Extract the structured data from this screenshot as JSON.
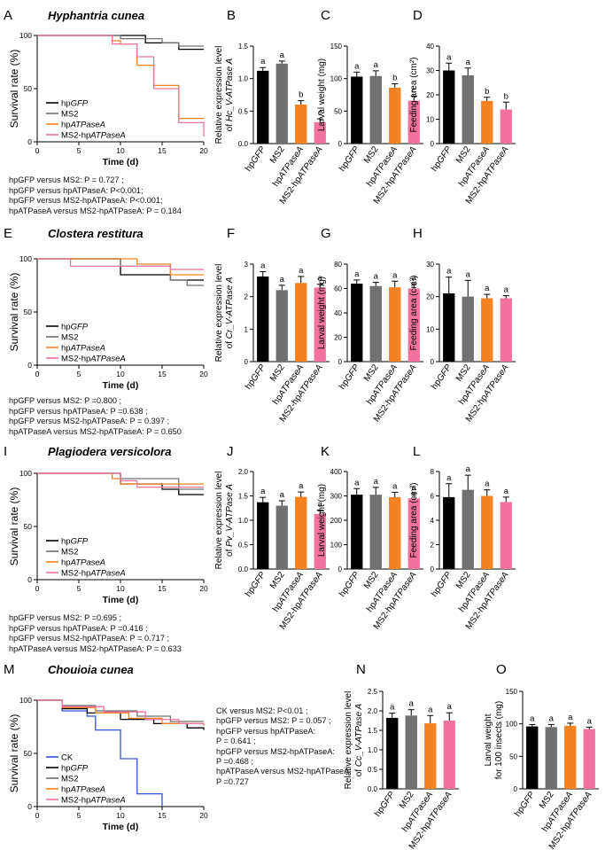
{
  "colors": {
    "hpGFP": "#000000",
    "MS2": "#707070",
    "hpATPaseA": "#f58220",
    "MS2-hpATPaseA": "#f0739f",
    "CK": "#3355d8"
  },
  "groups": [
    "hpGFP",
    "MS2",
    "hpATPaseA",
    "MS2-hpATPaseA"
  ],
  "rows": [
    {
      "species": "Hyphantria cunea",
      "survival": {
        "letter": "A",
        "ylabel": "Survival rate (%)",
        "xlabel": "Time (d)",
        "xticks": [
          "0",
          "5",
          "10",
          "15",
          "20"
        ],
        "yticks": [
          "0",
          "50",
          "100"
        ],
        "legend": [
          "hpGFP",
          "MS2",
          "hpATPaseA",
          "MS2-hpATPaseA"
        ],
        "series": [
          {
            "name": "hpGFP",
            "points": [
              [
                0,
                100
              ],
              [
                13,
                93
              ],
              [
                17,
                87
              ],
              [
                20,
                87
              ]
            ]
          },
          {
            "name": "MS2",
            "points": [
              [
                0,
                100
              ],
              [
                10,
                97
              ],
              [
                15,
                93
              ],
              [
                17,
                90
              ],
              [
                20,
                90
              ]
            ]
          },
          {
            "name": "hpATPaseA",
            "points": [
              [
                0,
                100
              ],
              [
                9,
                95
              ],
              [
                10,
                92
              ],
              [
                12,
                72
              ],
              [
                14,
                53
              ],
              [
                17,
                22
              ],
              [
                20,
                22
              ]
            ]
          },
          {
            "name": "MS2-hpATPaseA",
            "points": [
              [
                0,
                100
              ],
              [
                9,
                92
              ],
              [
                12,
                80
              ],
              [
                14,
                50
              ],
              [
                17,
                18
              ],
              [
                20,
                5
              ]
            ]
          }
        ]
      },
      "stats": [
        "hpGFP versus MS2: P = 0.727  ;",
        "hpGFP versus hpATPaseA: P<0.001;",
        "hpGFP versus MS2-hpATPaseA: P<0.001;",
        "hpATPaseA versus MS2-hpATPaseA: P = 0.184"
      ],
      "bars": [
        {
          "letter": "B",
          "ylabel": [
            "Relative expression level",
            "of Hc_V-ATPase A"
          ],
          "ymax": 1.5,
          "yticks": [
            "0.0",
            "0.5",
            "1.0",
            "1.5"
          ],
          "values": [
            1.12,
            1.23,
            0.6,
            0.33
          ],
          "errors": [
            0.05,
            0.04,
            0.06,
            0.05
          ],
          "sig": [
            "a",
            "a",
            "b",
            "c"
          ]
        },
        {
          "letter": "C",
          "ylabel": [
            "Larval weight (mg)"
          ],
          "ymax": 150,
          "yticks": [
            "0",
            "50",
            "100",
            "150"
          ],
          "values": [
            103,
            104,
            86,
            66
          ],
          "errors": [
            7,
            8,
            6,
            7
          ],
          "sig": [
            "a",
            "a",
            "b",
            "c"
          ]
        },
        {
          "letter": "D",
          "ylabel": [
            "Feeding area (cm²)"
          ],
          "ymax": 40,
          "yticks": [
            "0",
            "10",
            "20",
            "30",
            "40"
          ],
          "values": [
            30,
            28,
            17.5,
            14
          ],
          "errors": [
            3,
            3,
            1.5,
            3
          ],
          "sig": [
            "a",
            "a",
            "b",
            "b"
          ]
        }
      ]
    },
    {
      "species": "Clostera restitura",
      "survival": {
        "letter": "E",
        "ylabel": "Survival rate (%)",
        "xlabel": "Time (d)",
        "xticks": [
          "0",
          "5",
          "10",
          "15",
          "20"
        ],
        "yticks": [
          "0",
          "50",
          "100"
        ],
        "legend": [
          "hpGFP",
          "MS2",
          "hpATPaseA",
          "MS2-hpATPaseA"
        ],
        "series": [
          {
            "name": "hpGFP",
            "points": [
              [
                0,
                100
              ],
              [
                10,
                85
              ],
              [
                16,
                80
              ],
              [
                20,
                80
              ]
            ]
          },
          {
            "name": "MS2",
            "points": [
              [
                0,
                100
              ],
              [
                10,
                93
              ],
              [
                16,
                80
              ],
              [
                18,
                75
              ],
              [
                20,
                75
              ]
            ]
          },
          {
            "name": "hpATPaseA",
            "points": [
              [
                0,
                100
              ],
              [
                10,
                100
              ],
              [
                12,
                95
              ],
              [
                16,
                85
              ],
              [
                20,
                85
              ]
            ]
          },
          {
            "name": "MS2-hpATPaseA",
            "points": [
              [
                0,
                100
              ],
              [
                4,
                93
              ],
              [
                16,
                90
              ],
              [
                20,
                90
              ]
            ]
          }
        ]
      },
      "stats": [
        "hpGFP versus MS2: P =0.800  ;",
        "hpGFP versus hpATPaseA: P =0.638 ;",
        "hpGFP versus MS2-hpATPaseA: P = 0.397 ;",
        "hpATPaseA versus MS2-hpATPaseA: P = 0.650"
      ],
      "bars": [
        {
          "letter": "F",
          "ylabel": [
            "Relative expression level",
            "of Cr_V-ATPase A"
          ],
          "ymax": 3,
          "yticks": [
            "0",
            "1",
            "2",
            "3"
          ],
          "values": [
            2.62,
            2.2,
            2.42,
            2.28
          ],
          "errors": [
            0.15,
            0.15,
            0.2,
            0.1
          ],
          "sig": [
            "a",
            "a",
            "a",
            "a"
          ]
        },
        {
          "letter": "G",
          "ylabel": [
            "Larval weight (mg)"
          ],
          "ymax": 80,
          "yticks": [
            "0",
            "20",
            "40",
            "60",
            "80"
          ],
          "values": [
            64,
            62,
            61,
            60
          ],
          "errors": [
            3,
            3,
            5,
            4
          ],
          "sig": [
            "a",
            "a",
            "a",
            "a"
          ]
        },
        {
          "letter": "H",
          "ylabel": [
            "Feeding area (cm²)"
          ],
          "ymax": 30,
          "yticks": [
            "0",
            "10",
            "20",
            "30"
          ],
          "values": [
            21,
            20,
            19.5,
            19.5
          ],
          "errors": [
            5,
            5,
            1.2,
            0.8
          ],
          "sig": [
            "a",
            "a",
            "a",
            "a"
          ]
        }
      ]
    },
    {
      "species": "Plagiodera versicolora",
      "survival": {
        "letter": "I",
        "ylabel": "Survival rate (%)",
        "xlabel": "Time (d)",
        "xticks": [
          "0",
          "5",
          "10",
          "15",
          "20"
        ],
        "yticks": [
          "0",
          "50",
          "100"
        ],
        "legend": [
          "hpGFP",
          "MS2",
          "hpATPaseA",
          "MS2-hpATPaseA"
        ],
        "series": [
          {
            "name": "hpGFP",
            "points": [
              [
                0,
                100
              ],
              [
                10,
                90
              ],
              [
                15,
                85
              ],
              [
                17,
                80
              ],
              [
                20,
                80
              ]
            ]
          },
          {
            "name": "MS2",
            "points": [
              [
                0,
                100
              ],
              [
                10,
                95
              ],
              [
                17,
                85
              ],
              [
                20,
                85
              ]
            ]
          },
          {
            "name": "hpATPaseA",
            "points": [
              [
                0,
                100
              ],
              [
                9,
                95
              ],
              [
                10,
                90
              ],
              [
                20,
                90
              ]
            ]
          },
          {
            "name": "MS2-hpATPaseA",
            "points": [
              [
                0,
                100
              ],
              [
                10,
                93
              ],
              [
                12,
                87
              ],
              [
                20,
                87
              ]
            ]
          }
        ]
      },
      "stats": [
        "hpGFP versus MS2: P =0.695  ;",
        "hpGFP versus hpATPaseA: P =0.416 ;",
        "hpGFP versus MS2-hpATPaseA: P = 0.717 ;",
        "hpATPaseA versus MS2-hpATPaseA: P = 0.633"
      ],
      "bars": [
        {
          "letter": "J",
          "ylabel": [
            "Relative expression level",
            "of Pv_V-ATPase A"
          ],
          "ymax": 2,
          "yticks": [
            "0.0",
            "0.5",
            "1.0",
            "1.5",
            "2.0"
          ],
          "values": [
            1.37,
            1.3,
            1.48,
            1.13
          ],
          "errors": [
            0.1,
            0.1,
            0.1,
            0.08
          ],
          "sig": [
            "a",
            "a",
            "a",
            "a"
          ]
        },
        {
          "letter": "K",
          "ylabel": [
            "Larval weight (mg)"
          ],
          "ymax": 400,
          "yticks": [
            "0",
            "100",
            "200",
            "300",
            "400"
          ],
          "values": [
            305,
            305,
            295,
            290
          ],
          "errors": [
            25,
            30,
            20,
            20
          ],
          "sig": [
            "a",
            "a",
            "a",
            "a"
          ]
        },
        {
          "letter": "L",
          "ylabel": [
            "Feeding area (cm²)"
          ],
          "ymax": 8,
          "yticks": [
            "0",
            "2",
            "4",
            "6",
            "8"
          ],
          "values": [
            5.9,
            6.5,
            6,
            5.5
          ],
          "errors": [
            1.1,
            1.2,
            0.5,
            0.4
          ],
          "sig": [
            "a",
            "a",
            "a",
            "a"
          ]
        }
      ]
    },
    {
      "species": "Chouioia cunea",
      "survival": {
        "letter": "M",
        "ylabel": "Survival rate (%)",
        "xlabel": "Time (d)",
        "xticks": [
          "0",
          "5",
          "10",
          "15",
          "20"
        ],
        "yticks": [
          "0",
          "50",
          "100"
        ],
        "legend": [
          "CK",
          "hpGFP",
          "MS2",
          "hpATPaseA",
          "MS2-hpATPaseA"
        ],
        "series": [
          {
            "name": "CK",
            "points": [
              [
                0,
                100
              ],
              [
                3,
                90
              ],
              [
                6,
                85
              ],
              [
                7,
                72
              ],
              [
                10,
                45
              ],
              [
                12,
                12
              ],
              [
                15,
                0
              ]
            ]
          },
          {
            "name": "hpGFP",
            "points": [
              [
                0,
                100
              ],
              [
                3,
                92
              ],
              [
                6,
                88
              ],
              [
                10,
                82
              ],
              [
                14,
                78
              ],
              [
                18,
                74
              ],
              [
                20,
                72
              ]
            ]
          },
          {
            "name": "MS2",
            "points": [
              [
                0,
                100
              ],
              [
                3,
                95
              ],
              [
                7,
                90
              ],
              [
                12,
                85
              ],
              [
                16,
                80
              ],
              [
                20,
                80
              ]
            ]
          },
          {
            "name": "hpATPaseA",
            "points": [
              [
                0,
                100
              ],
              [
                3,
                93
              ],
              [
                7,
                88
              ],
              [
                11,
                83
              ],
              [
                15,
                78
              ],
              [
                20,
                76
              ]
            ]
          },
          {
            "name": "MS2-hpATPaseA",
            "points": [
              [
                0,
                100
              ],
              [
                3,
                94
              ],
              [
                8,
                89
              ],
              [
                13,
                82
              ],
              [
                17,
                78
              ],
              [
                20,
                77
              ]
            ]
          }
        ]
      },
      "stats": [
        "CK versus MS2: P<0.01 ;",
        "hpGFP versus MS2: P = 0.057 ;",
        "hpGFP versus hpATPaseA:",
        "P = 0.641 ;",
        "hpGFP versus MS2-hpATPaseA:",
        "P =0.468 ;",
        "hpATPaseA versus MS2-hpATPaseA:",
        "P =0.727"
      ],
      "bars": [
        {
          "letter": "N",
          "ylabel": [
            "Relative expression level",
            "of Cc_V-ATPase A"
          ],
          "ymax": 2.5,
          "yticks": [
            "0.0",
            "0.5",
            "1.0",
            "1.5",
            "2.0",
            "2.5"
          ],
          "values": [
            1.82,
            1.88,
            1.68,
            1.75
          ],
          "errors": [
            0.12,
            0.15,
            0.2,
            0.2
          ],
          "sig": [
            "a",
            "a",
            "a",
            "a"
          ]
        },
        {
          "letter": "O",
          "ylabel": [
            "Larval weight",
            "for 100 insects (mg)"
          ],
          "ymax": 150,
          "yticks": [
            "0",
            "50",
            "100",
            "150"
          ],
          "values": [
            96,
            95,
            97,
            92
          ],
          "errors": [
            3,
            4,
            4,
            3
          ],
          "sig": [
            "a",
            "a",
            "a",
            "a"
          ]
        }
      ]
    }
  ]
}
